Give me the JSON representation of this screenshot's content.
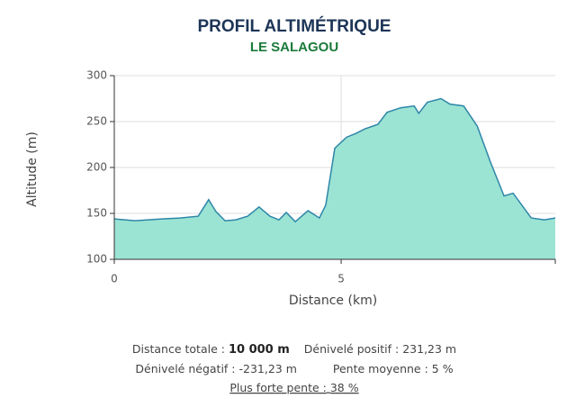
{
  "chart_data": {
    "type": "area",
    "title": "PROFIL ALTIMÉTRIQUE",
    "subtitle": "LE SALAGOU",
    "x_label": "Distance (km)",
    "y_label": "Altitude (m)",
    "x": [
      0,
      0.46,
      1.05,
      1.45,
      1.85,
      2.08,
      2.24,
      2.44,
      2.68,
      2.94,
      3.19,
      3.43,
      3.63,
      3.79,
      3.99,
      4.27,
      4.52,
      4.66,
      4.86,
      5.12,
      5.32,
      5.52,
      5.81,
      6.01,
      6.31,
      6.61,
      6.71,
      6.9,
      7.2,
      7.4,
      7.7,
      8.0,
      8.29,
      8.59,
      8.79,
      9.19,
      9.48,
      9.72
    ],
    "series": [
      {
        "name": "Altitude",
        "color": "#2e86a8",
        "fill": "#9be3d3",
        "values": [
          144,
          142,
          144,
          145,
          147,
          165,
          152,
          142,
          143,
          147,
          157,
          147,
          143,
          151,
          141,
          153,
          145,
          159,
          221,
          233,
          237,
          242,
          247,
          260,
          265,
          267,
          259,
          271,
          275,
          269,
          267,
          245,
          206,
          169,
          172,
          145,
          143,
          145
        ]
      }
    ],
    "xlim": [
      0,
      9.72
    ],
    "xticks": [
      0,
      5
    ],
    "ylim": [
      100,
      300
    ],
    "yticks": [
      100,
      150,
      200,
      250,
      300
    ],
    "grid": true
  },
  "stats": [
    {
      "label": "Distance totale :",
      "value": "10 000 m"
    },
    {
      "label": "Dénivelé positif :",
      "value": "231,23 m"
    },
    {
      "label": "Dénivelé négatif :",
      "value": "-231,23 m"
    },
    {
      "label": "Pente moyenne :",
      "value": "5 %"
    },
    {
      "label": "Plus forte pente :",
      "value": "38 %"
    }
  ]
}
